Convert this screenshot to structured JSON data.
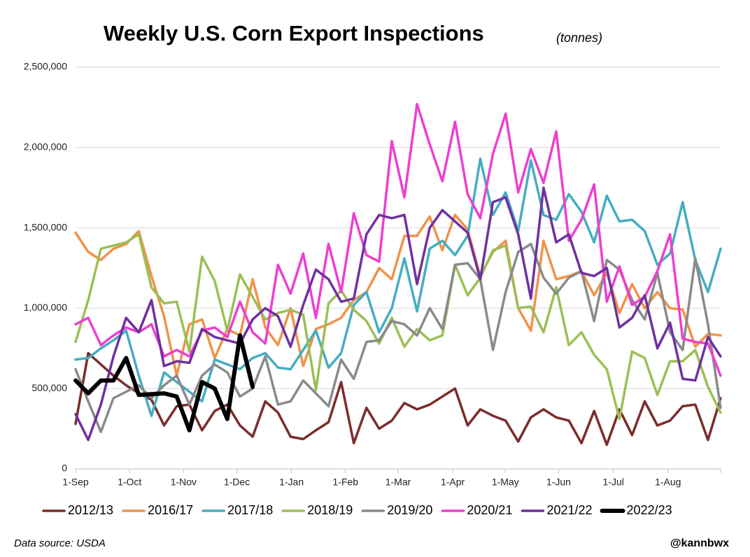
{
  "chart_data": {
    "type": "line",
    "title": "Weekly U.S. Corn Export Inspections",
    "subtitle": "(tonnes)",
    "annotations": [
      "Data source: USDA",
      "@kannbwx"
    ],
    "x": [
      0,
      1,
      2,
      3,
      4,
      5,
      6,
      7,
      8,
      9,
      10,
      11,
      12,
      13,
      14,
      15,
      16,
      17,
      18,
      19,
      20,
      21,
      22,
      23,
      24,
      25,
      26,
      27,
      28,
      29,
      30,
      31,
      32,
      33,
      34,
      35,
      36,
      37,
      38,
      39,
      40,
      41,
      42,
      43,
      44,
      45,
      46,
      47,
      48,
      49,
      50,
      51
    ],
    "xlim": [
      0,
      51
    ],
    "xticks": [
      {
        "value": 0,
        "label": "1-Sep"
      },
      {
        "value": 4.27,
        "label": "1-Oct"
      },
      {
        "value": 8.54,
        "label": "1-Nov"
      },
      {
        "value": 12.75,
        "label": "1-Dec"
      },
      {
        "value": 17.07,
        "label": "1-Jan"
      },
      {
        "value": 21.34,
        "label": "1-Feb"
      },
      {
        "value": 25.5,
        "label": "1-Mar"
      },
      {
        "value": 29.82,
        "label": "1-Apr"
      },
      {
        "value": 33.98,
        "label": "1-May"
      },
      {
        "value": 38.19,
        "label": "1-Jun"
      },
      {
        "value": 42.52,
        "label": "1-Jul"
      },
      {
        "value": 46.84,
        "label": "1-Aug"
      }
    ],
    "ylim": [
      0,
      2500000
    ],
    "yticks": [
      0,
      {
        "value": 500000,
        "label": "500,000"
      },
      {
        "value": 1000000,
        "label": "1,000,000"
      },
      {
        "value": 1500000,
        "label": "1,500,000"
      },
      {
        "value": 2000000,
        "label": "2,000,000"
      },
      {
        "value": 2500000,
        "label": "2,500,000"
      }
    ],
    "grid": true,
    "legend": "bottom",
    "series": [
      {
        "name": "2012/13",
        "color": "#7b2c2c",
        "values": [
          280000,
          720000,
          650000,
          580000,
          520000,
          470000,
          430000,
          270000,
          390000,
          400000,
          240000,
          360000,
          400000,
          270000,
          200000,
          420000,
          350000,
          200000,
          185000,
          240000,
          290000,
          540000,
          160000,
          380000,
          250000,
          300000,
          410000,
          370000,
          400000,
          450000,
          500000,
          270000,
          370000,
          330000,
          300000,
          170000,
          320000,
          370000,
          320000,
          300000,
          160000,
          360000,
          150000,
          370000,
          210000,
          420000,
          270000,
          300000,
          390000,
          400000,
          180000,
          440000
        ]
      },
      {
        "name": "2016/17",
        "color": "#f0934a",
        "values": [
          1470000,
          1350000,
          1300000,
          1370000,
          1400000,
          1480000,
          1200000,
          950000,
          580000,
          900000,
          930000,
          690000,
          870000,
          830000,
          1180000,
          880000,
          770000,
          1000000,
          640000,
          870000,
          900000,
          940000,
          1050000,
          1100000,
          1250000,
          1180000,
          1450000,
          1450000,
          1570000,
          1360000,
          1580000,
          1490000,
          1200000,
          1350000,
          1420000,
          1000000,
          860000,
          1420000,
          1180000,
          1200000,
          1230000,
          1080000,
          1220000,
          970000,
          1150000,
          1000000,
          1100000,
          1000000,
          990000,
          760000,
          840000,
          830000
        ]
      },
      {
        "name": "2017/18",
        "color": "#45adc2",
        "values": [
          680000,
          690000,
          750000,
          800000,
          860000,
          580000,
          330000,
          600000,
          540000,
          480000,
          420000,
          680000,
          650000,
          620000,
          690000,
          720000,
          630000,
          620000,
          740000,
          860000,
          630000,
          720000,
          1020000,
          1100000,
          850000,
          1000000,
          1310000,
          980000,
          1370000,
          1420000,
          1330000,
          1450000,
          1930000,
          1580000,
          1720000,
          1480000,
          1920000,
          1580000,
          1550000,
          1710000,
          1600000,
          1410000,
          1700000,
          1540000,
          1550000,
          1480000,
          1270000,
          1340000,
          1660000,
          1300000,
          1100000,
          1370000
        ]
      },
      {
        "name": "2018/19",
        "color": "#9bbf55",
        "values": [
          790000,
          1050000,
          1370000,
          1390000,
          1410000,
          1460000,
          1130000,
          1030000,
          1040000,
          730000,
          1320000,
          1170000,
          860000,
          1210000,
          1070000,
          930000,
          970000,
          990000,
          960000,
          490000,
          1030000,
          1110000,
          990000,
          920000,
          780000,
          940000,
          760000,
          870000,
          800000,
          830000,
          1270000,
          1080000,
          1190000,
          1360000,
          1390000,
          1000000,
          1010000,
          850000,
          1130000,
          770000,
          850000,
          710000,
          620000,
          310000,
          730000,
          690000,
          460000,
          670000,
          670000,
          740000,
          510000,
          350000
        ]
      },
      {
        "name": "2019/20",
        "color": "#8a8a8a",
        "values": [
          620000,
          420000,
          230000,
          440000,
          480000,
          520000,
          440000,
          520000,
          580000,
          400000,
          580000,
          650000,
          600000,
          450000,
          500000,
          700000,
          400000,
          420000,
          550000,
          470000,
          390000,
          680000,
          560000,
          790000,
          800000,
          920000,
          900000,
          830000,
          1000000,
          870000,
          1270000,
          1280000,
          1180000,
          740000,
          1100000,
          1350000,
          1400000,
          1190000,
          1090000,
          1190000,
          1230000,
          920000,
          1300000,
          1240000,
          1050000,
          930000,
          1220000,
          850000,
          740000,
          1310000,
          900000,
          380000
        ]
      },
      {
        "name": "2020/21",
        "color": "#ee3fcf",
        "values": [
          900000,
          940000,
          770000,
          830000,
          880000,
          850000,
          900000,
          700000,
          740000,
          700000,
          860000,
          880000,
          820000,
          1040000,
          850000,
          780000,
          1270000,
          1090000,
          1340000,
          940000,
          1400000,
          1100000,
          1590000,
          1330000,
          1290000,
          2040000,
          1690000,
          2270000,
          2020000,
          1790000,
          2160000,
          1710000,
          1560000,
          1960000,
          2210000,
          1720000,
          1990000,
          1780000,
          2100000,
          1420000,
          1550000,
          1770000,
          1040000,
          1260000,
          1020000,
          1070000,
          1230000,
          1460000,
          810000,
          790000,
          780000,
          580000
        ]
      },
      {
        "name": "2021/22",
        "color": "#7030a0",
        "values": [
          340000,
          180000,
          400000,
          700000,
          940000,
          850000,
          1050000,
          640000,
          670000,
          660000,
          870000,
          820000,
          800000,
          780000,
          930000,
          1000000,
          950000,
          760000,
          1020000,
          1240000,
          1180000,
          1040000,
          1060000,
          1460000,
          1580000,
          1560000,
          1580000,
          1150000,
          1500000,
          1610000,
          1540000,
          1470000,
          1180000,
          1660000,
          1690000,
          1460000,
          1060000,
          1750000,
          1410000,
          1460000,
          1220000,
          1200000,
          1250000,
          880000,
          940000,
          1080000,
          750000,
          910000,
          560000,
          550000,
          820000,
          700000
        ]
      },
      {
        "name": "2022/23",
        "color": "#000000",
        "values": [
          550000,
          470000,
          550000,
          550000,
          690000,
          460000,
          465000,
          470000,
          450000,
          240000,
          540000,
          500000,
          310000,
          830000,
          510000,
          null,
          null,
          null,
          null,
          null,
          null,
          null,
          null,
          null,
          null,
          null,
          null,
          null,
          null,
          null,
          null,
          null,
          null,
          null,
          null,
          null,
          null,
          null,
          null,
          null,
          null,
          null,
          null,
          null,
          null,
          null,
          null,
          null,
          null,
          null,
          null,
          null
        ]
      }
    ]
  }
}
